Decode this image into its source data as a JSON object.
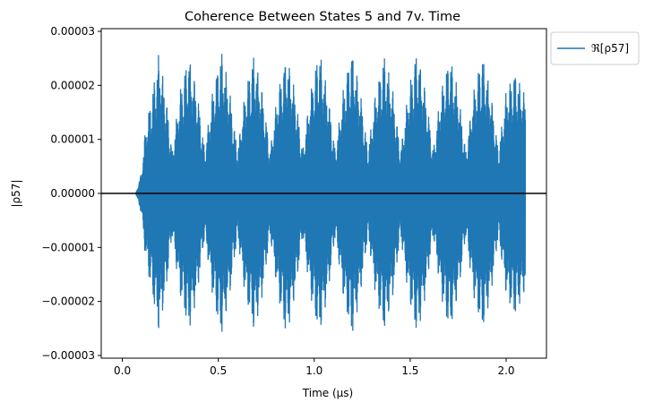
{
  "chart_data": {
    "type": "line",
    "title": "Coherence Between States 5 and 7v. Time",
    "xlabel": "Time (μs)",
    "ylabel": "|ρ57|",
    "xlim": [
      -0.11,
      2.21
    ],
    "ylim": [
      -3.05e-05,
      3.05e-05
    ],
    "xticks": [
      0.0,
      0.5,
      1.0,
      1.5,
      2.0
    ],
    "xtick_labels": [
      "0.0",
      "0.5",
      "1.0",
      "1.5",
      "2.0"
    ],
    "yticks": [
      -3e-05,
      -2e-05,
      -1e-05,
      0.0,
      1e-05,
      2e-05,
      3e-05
    ],
    "ytick_labels": [
      "−0.00003",
      "−0.00002",
      "−0.00001",
      "0.00000",
      "0.00001",
      "0.00002",
      "0.00003"
    ],
    "grid": false,
    "legend_position": "outside-top-right",
    "baseline": {
      "y": 0.0,
      "color": "#000000"
    },
    "series": [
      {
        "name": "ℜ[ρ57]",
        "color": "#1f77b4",
        "t_start": 0.07,
        "t_end": 2.1,
        "envelope": {
          "x": [
            0.07,
            0.1,
            0.12,
            0.155,
            0.19,
            0.225,
            0.26,
            0.3,
            0.345,
            0.39,
            0.43,
            0.47,
            0.515,
            0.56,
            0.6,
            0.64,
            0.685,
            0.73,
            0.77,
            0.81,
            0.855,
            0.9,
            0.94,
            0.98,
            1.025,
            1.07,
            1.11,
            1.15,
            1.195,
            1.24,
            1.28,
            1.32,
            1.365,
            1.41,
            1.45,
            1.49,
            1.535,
            1.58,
            1.62,
            1.66,
            1.705,
            1.75,
            1.79,
            1.83,
            1.875,
            1.92,
            1.96,
            2.0,
            2.045,
            2.1
          ],
          "upper": [
            0.0,
            4e-06,
            1.2e-05,
            1.9e-05,
            2.6e-05,
            1.9e-05,
            8e-06,
            1.9e-05,
            2.6e-05,
            1.9e-05,
            8e-06,
            1.9e-05,
            2.7e-05,
            1.9e-05,
            8e-06,
            1.9e-05,
            2.6e-05,
            1.9e-05,
            8e-06,
            1.9e-05,
            2.6e-05,
            1.9e-05,
            8e-06,
            1.9e-05,
            2.7e-05,
            1.9e-05,
            8e-06,
            1.9e-05,
            2.7e-05,
            1.9e-05,
            8e-06,
            1.9e-05,
            2.6e-05,
            1.9e-05,
            8e-06,
            1.9e-05,
            2.7e-05,
            1.9e-05,
            8e-06,
            1.9e-05,
            2.6e-05,
            1.9e-05,
            8e-06,
            1.9e-05,
            2.6e-05,
            1.9e-05,
            8e-06,
            1.9e-05,
            2.3e-05,
            1.8e-05
          ],
          "lower": [
            0.0,
            -4e-06,
            -1.2e-05,
            -1.9e-05,
            -2.6e-05,
            -1.9e-05,
            -8e-06,
            -1.9e-05,
            -2.6e-05,
            -1.9e-05,
            -8e-06,
            -1.9e-05,
            -2.7e-05,
            -1.9e-05,
            -8e-06,
            -1.9e-05,
            -2.6e-05,
            -1.9e-05,
            -8e-06,
            -1.9e-05,
            -2.7e-05,
            -1.9e-05,
            -8e-06,
            -1.9e-05,
            -2.7e-05,
            -1.9e-05,
            -8e-06,
            -1.9e-05,
            -2.7e-05,
            -1.9e-05,
            -8e-06,
            -1.9e-05,
            -2.6e-05,
            -1.9e-05,
            -8e-06,
            -1.9e-05,
            -2.7e-05,
            -1.9e-05,
            -8e-06,
            -1.9e-05,
            -2.6e-05,
            -1.9e-05,
            -8e-06,
            -1.9e-05,
            -2.6e-05,
            -1.9e-05,
            -8e-06,
            -1.9e-05,
            -2.3e-05,
            -1.8e-05
          ]
        }
      }
    ]
  }
}
